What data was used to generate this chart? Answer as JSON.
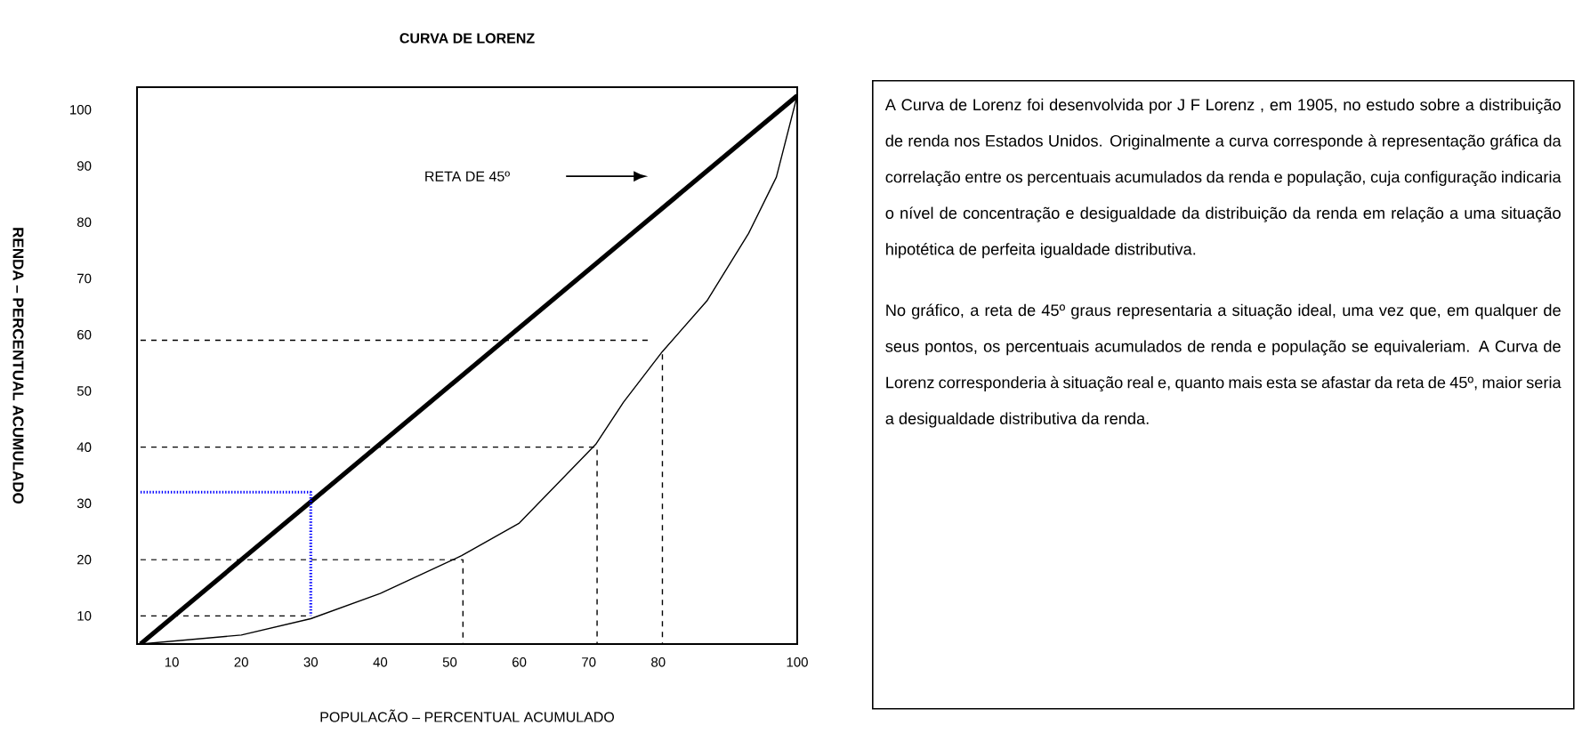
{
  "chart_data": [
    {
      "type": "line",
      "title": "CURVA DE LORENZ",
      "xlabel": "POPULACÃO – PERCENTUAL ACUMULADO",
      "ylabel": "RENDA – PERCENTUAL ACUMULADO",
      "xlim": [
        5,
        100
      ],
      "ylim": [
        5,
        104
      ],
      "xticks": [
        10,
        20,
        30,
        40,
        50,
        60,
        70,
        80,
        100
      ],
      "yticks": [
        10,
        20,
        30,
        40,
        50,
        60,
        70,
        80,
        90,
        100
      ],
      "annotations": [
        "RETA DE  45º"
      ],
      "series": [
        {
          "color": "#000000",
          "line_style": "solid",
          "x": [
            5.5,
            100
          ],
          "values": [
            5,
            102.5
          ]
        },
        {
          "color": "#000000",
          "line_style": "solid",
          "x": [
            5.5,
            20,
            30,
            40,
            51.7,
            60,
            71,
            75,
            80.6,
            87,
            93,
            97,
            100
          ],
          "values": [
            5,
            6.6,
            9.5,
            14,
            20.7,
            26.5,
            40.5,
            48,
            57,
            66,
            78,
            88,
            102.5
          ]
        },
        {
          "color": "#000000",
          "line_style": "dashed",
          "x": [
            5.5,
            30
          ],
          "values": [
            10,
            10
          ]
        },
        {
          "color": "#000000",
          "line_style": "dashed",
          "x": [
            5.5,
            51,
            51.9,
            51.9
          ],
          "values": [
            20,
            20,
            20,
            5
          ]
        },
        {
          "color": "#000000",
          "line_style": "dashed",
          "x": [
            5.5,
            70.8,
            71.2,
            71.2
          ],
          "values": [
            40,
            40,
            40,
            5
          ]
        },
        {
          "color": "#000000",
          "line_style": "dashed",
          "x": [
            5.5,
            78.7
          ],
          "values": [
            59,
            59
          ]
        },
        {
          "color": "#000000",
          "line_style": "dashed",
          "x": [
            80.6,
            80.6
          ],
          "values": [
            56.5,
            5
          ]
        },
        {
          "color": "#0000ff",
          "line_style": "dotted",
          "x": [
            5.5,
            30,
            30
          ],
          "values": [
            32,
            32,
            10
          ]
        }
      ]
    },
    {
      "type": "other",
      "annotations": [
        "A Curva de Lorenz foi desenvolvida por J F Lorenz , em 1905, no estudo sobre a distribuição de renda nos Estados Unidos. Originalmente a curva corresponde à representação gráfica da correlação entre os percentuais acumulados da renda e população, cuja configuração indicaria o nível de concentração e desigualdade da distribuição da renda em  relação a uma situação hipotética de perfeita igualdade distributiva.",
        "No gráfico, a reta de 45º graus representaria a situação ideal, uma vez que, em qualquer de seus pontos, os percentuais acumulados de renda e população se equivaleriam. A Curva de Lorenz corresponderia à situação real e, quanto mais esta se afastar da reta de 45º, maior seria a desigualdade distributiva da renda."
      ]
    }
  ]
}
